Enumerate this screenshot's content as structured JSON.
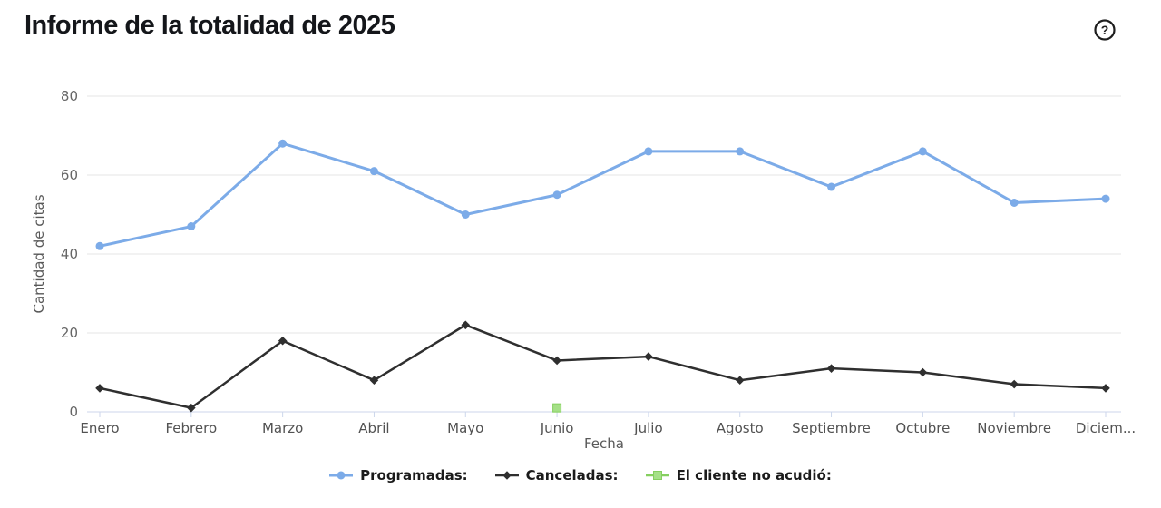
{
  "header": {
    "title": "Informe de la totalidad de 2025",
    "help_glyph": "?"
  },
  "chart_data": {
    "type": "line",
    "title": "Informe de la totalidad de 2025",
    "xlabel": "Fecha",
    "ylabel": "Cantidad de citas",
    "ylim": [
      0,
      80
    ],
    "y_ticks": [
      0,
      20,
      40,
      60,
      80
    ],
    "grid": "horizontal",
    "legend_position": "bottom-center",
    "categories": [
      "Enero",
      "Febrero",
      "Marzo",
      "Abril",
      "Mayo",
      "Junio",
      "Julio",
      "Agosto",
      "Septiembre",
      "Octubre",
      "Noviembre",
      "Diciembre"
    ],
    "x_tick_labels": [
      "Enero",
      "Febrero",
      "Marzo",
      "Abril",
      "Mayo",
      "Junio",
      "Julio",
      "Agosto",
      "Septiembre",
      "Octubre",
      "Noviembre",
      "Diciem..."
    ],
    "series": [
      {
        "name": "Programadas",
        "legend_label": "Programadas:",
        "color": "#7cabe8",
        "marker": "circle",
        "line_width": 3,
        "values": [
          42,
          47,
          68,
          61,
          50,
          55,
          66,
          66,
          57,
          66,
          53,
          54
        ]
      },
      {
        "name": "Canceladas",
        "legend_label": "Canceladas:",
        "color": "#2f2f2f",
        "marker": "diamond",
        "line_width": 2.5,
        "values": [
          6,
          1,
          18,
          8,
          22,
          13,
          14,
          8,
          11,
          10,
          7,
          6
        ]
      },
      {
        "name": "El cliente no acudió",
        "legend_label": "El cliente no acudió:",
        "color": "#85cf5f",
        "marker_fill": "#a5e087",
        "marker": "square",
        "line_width": 2.5,
        "values": [
          null,
          null,
          null,
          null,
          null,
          1,
          null,
          null,
          null,
          null,
          null,
          null
        ]
      }
    ],
    "colors": {
      "gridline": "#e6e6e6",
      "axis_line": "#ccd6eb",
      "y_tick_label": "#666666",
      "x_tick_label": "#525252",
      "axis_title": "#595959"
    }
  }
}
